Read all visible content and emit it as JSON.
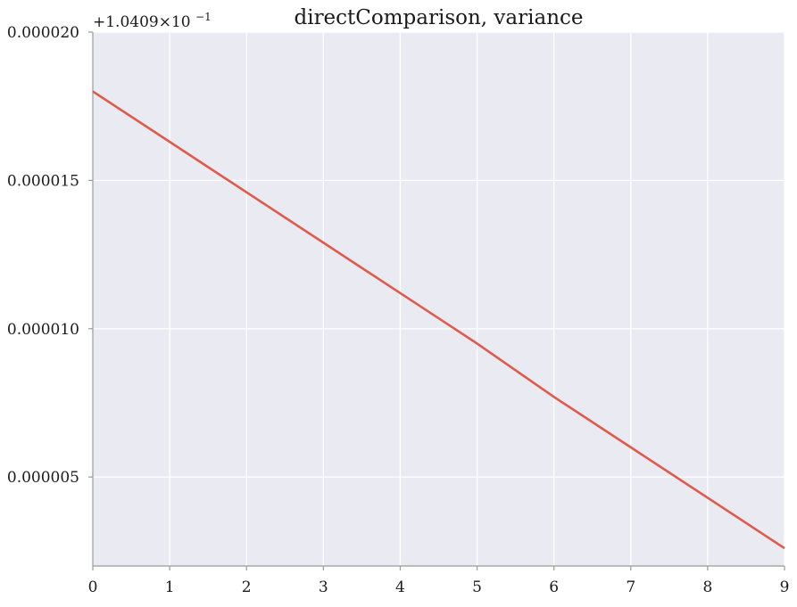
{
  "chart_data": {
    "type": "line",
    "title": "directComparison, variance",
    "xlabel": "",
    "ylabel": "",
    "y_offset_label": "+1.0409×10",
    "y_offset_exponent": "−1",
    "xlim": [
      0,
      9
    ],
    "ylim": [
      2e-06,
      2e-05
    ],
    "x_ticks": [
      0,
      1,
      2,
      3,
      4,
      5,
      6,
      7,
      8,
      9
    ],
    "x_tick_labels": [
      "0",
      "1",
      "2",
      "3",
      "4",
      "5",
      "6",
      "7",
      "8",
      "9"
    ],
    "y_ticks": [
      5e-06,
      1e-05,
      1.5e-05,
      2e-05
    ],
    "y_tick_labels": [
      "0.000005",
      "0.000010",
      "0.000015",
      "0.000020"
    ],
    "grid": true,
    "series": [
      {
        "x": [
          0,
          1,
          2,
          3,
          4,
          5,
          6,
          7,
          8,
          9
        ],
        "values": [
          1.8e-05,
          1.63e-05,
          1.46e-05,
          1.29e-05,
          1.12e-05,
          9.5e-06,
          7.7e-06,
          6e-06,
          4.3e-06,
          2.6e-06
        ],
        "color": "#e05a4b"
      }
    ],
    "colors": {
      "plot_background": "#eaeaf2",
      "grid": "#ffffff",
      "axis": "#9a9a9a"
    }
  }
}
